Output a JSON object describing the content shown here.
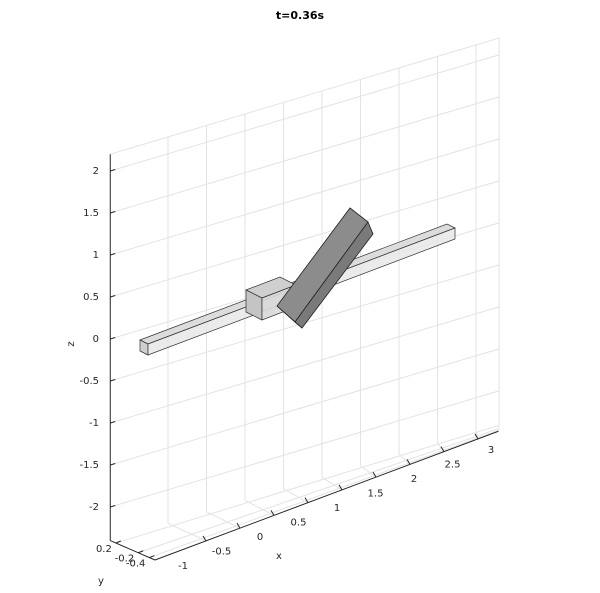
{
  "chart_data": {
    "type": "surface3d",
    "title": "t=0.36s",
    "x_label": "x",
    "y_label": "y",
    "z_label": "z",
    "xlim": [
      -1.75,
      3.3
    ],
    "ylim": [
      -0.5,
      0.3
    ],
    "zlim": [
      -2.4,
      2.2
    ],
    "xticks": [
      -1,
      -0.5,
      0,
      0.5,
      1,
      1.5,
      2,
      2.5,
      3
    ],
    "yticks": [
      0.2,
      -0.2,
      -0.4
    ],
    "zticks": [
      -2,
      -1.5,
      -1,
      -0.5,
      0,
      0.5,
      1,
      1.5,
      2
    ],
    "grid": true
  }
}
